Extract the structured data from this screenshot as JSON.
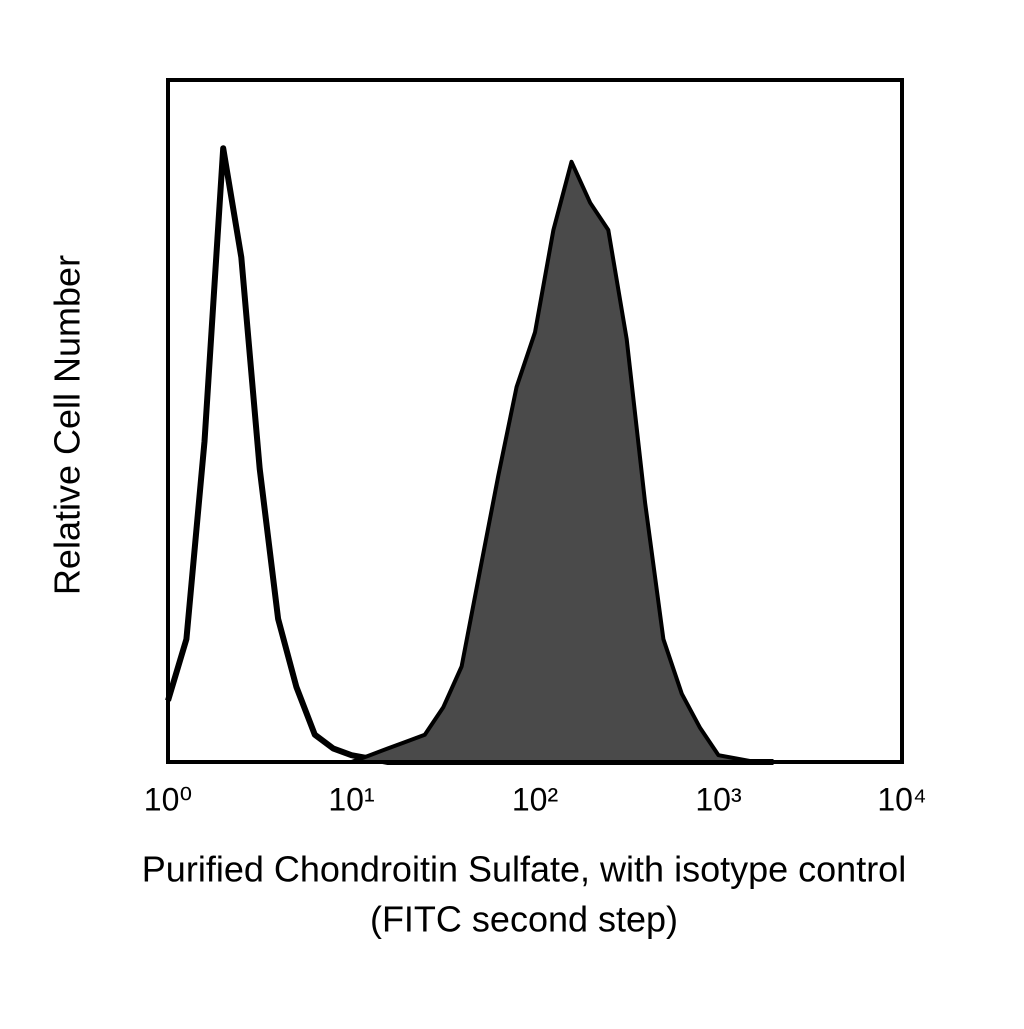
{
  "chart_data": {
    "type": "histogram-overlay",
    "ylabel": "Relative Cell Number",
    "xlabel": [
      "Purified Chondroitin Sulfate, with isotype control",
      "(FITC second step)"
    ],
    "log_x": true,
    "xlim": [
      1,
      10000
    ],
    "xticks": [
      {
        "value": 1,
        "label": "10⁰"
      },
      {
        "value": 10,
        "label": "10¹"
      },
      {
        "value": 100,
        "label": "10²"
      },
      {
        "value": 1000,
        "label": "10³"
      },
      {
        "value": 10000,
        "label": "10⁴"
      }
    ],
    "ylim": [
      0,
      100
    ],
    "x": [
      1,
      1.26,
      1.58,
      2,
      2.51,
      3.16,
      3.98,
      5.01,
      6.31,
      7.94,
      10,
      12.6,
      15.8,
      20,
      25.1,
      31.6,
      39.8,
      50.1,
      63.1,
      79.4,
      100,
      126,
      158,
      200,
      251,
      316,
      398,
      501,
      631,
      794,
      1000,
      1259,
      1585,
      1995
    ],
    "series": [
      {
        "color": "#000000",
        "filled": false,
        "values": [
          9,
          18,
          47,
          90,
          74,
          43,
          21,
          11,
          4,
          2,
          1,
          0.5,
          0,
          0,
          0,
          0,
          0,
          0,
          0,
          0,
          0,
          0,
          0,
          0,
          0,
          0,
          0,
          0,
          0,
          0,
          0,
          0,
          0,
          0
        ]
      },
      {
        "color": "#4a4a4a",
        "filled": true,
        "values": [
          0,
          0,
          0,
          0,
          0,
          0,
          0,
          0,
          0,
          0,
          0,
          1,
          2,
          3,
          4,
          8,
          14,
          28,
          42,
          55,
          63,
          78,
          88,
          82,
          78,
          62,
          38,
          18,
          10,
          5,
          1,
          0.5,
          0,
          0
        ]
      }
    ]
  }
}
